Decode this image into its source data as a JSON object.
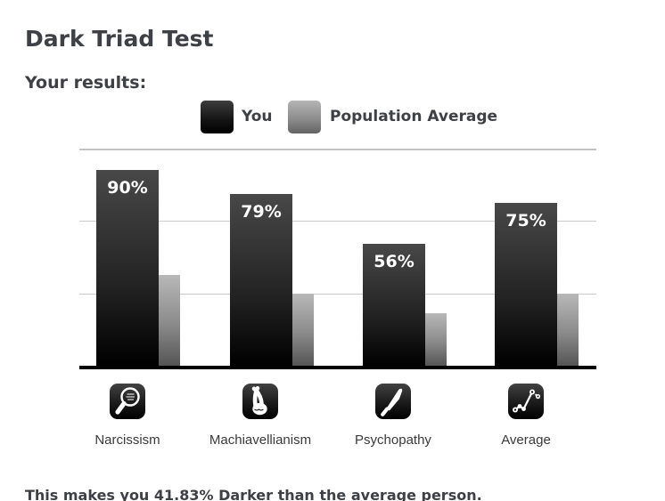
{
  "page": {
    "title": "Dark Triad Test",
    "results_heading": "Your results:",
    "summary": "This makes you 41.83% Darker than the average person."
  },
  "legend": {
    "you_label": "You",
    "average_label": "Population Average"
  },
  "colors": {
    "text": "#3d4045",
    "bar_you_top": "#484848",
    "bar_you_bottom": "#000000",
    "bar_avg_top": "#b8b8b8",
    "bar_avg_bottom": "#555555",
    "gridline": "#cbcbcb",
    "axis": "#000000",
    "bar_value_text": "#ffffff",
    "icon_tile_bg": "#000000",
    "icon_glyph": "#ffffff"
  },
  "chart_data": {
    "type": "bar",
    "title": "",
    "xlabel": "",
    "ylabel": "",
    "categories": [
      "Narcissism",
      "Machiavellianism",
      "Psychopathy",
      "Average"
    ],
    "icons": [
      "mirror-icon",
      "crossed-fingers-icon",
      "knife-icon",
      "line-graph-icon"
    ],
    "series": [
      {
        "name": "You",
        "values": [
          90,
          79,
          56,
          75
        ],
        "labels": [
          "90%",
          "79%",
          "56%",
          "75%"
        ]
      },
      {
        "name": "Population Average",
        "values": [
          42,
          33,
          24,
          33.17
        ],
        "labels": [
          "",
          "",
          "",
          ""
        ]
      }
    ],
    "ylim": [
      0,
      100
    ],
    "gridlines_pct": [
      33.3,
      66.7,
      100
    ],
    "grid": true,
    "legend": [
      "You",
      "Population Average"
    ],
    "legend_position": "top-center"
  }
}
